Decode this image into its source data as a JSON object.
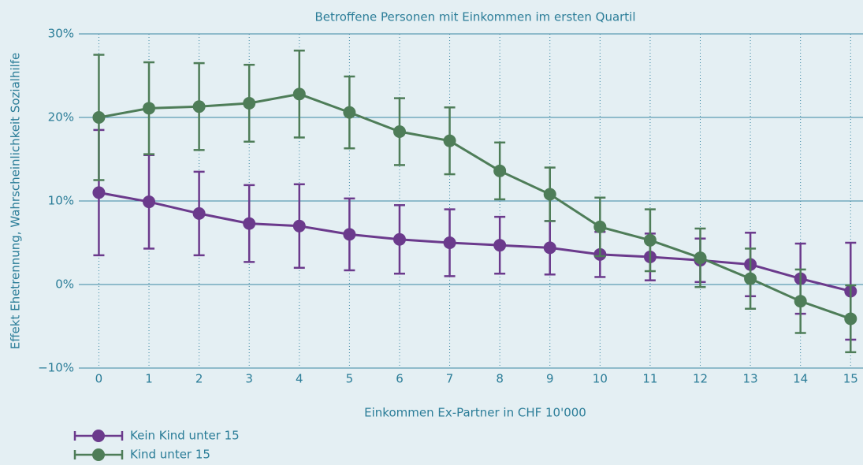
{
  "chart_data": {
    "type": "line",
    "title": "Betroffene Personen mit Einkommen im ersten Quartil",
    "xlabel": "Einkommen Ex-Partner in CHF 10'000",
    "ylabel": "Effekt Ehetrennung, Wahrscheinlichkeit Sozialhilfe",
    "x": [
      0,
      1,
      2,
      3,
      4,
      5,
      6,
      7,
      8,
      9,
      10,
      11,
      12,
      13,
      14,
      15
    ],
    "series": [
      {
        "name": "Kein Kind unter 15",
        "color": "#6b3a8c",
        "values": [
          11.0,
          9.9,
          8.5,
          7.3,
          7.0,
          6.0,
          5.4,
          5.0,
          4.7,
          4.4,
          3.6,
          3.3,
          2.9,
          2.4,
          0.7,
          -0.8
        ],
        "errors": [
          7.5,
          5.6,
          5.0,
          4.6,
          5.0,
          4.3,
          4.1,
          4.0,
          3.4,
          3.2,
          2.7,
          2.8,
          2.6,
          3.8,
          4.2,
          5.8
        ]
      },
      {
        "name": "Kind unter 15",
        "color": "#4e7d58",
        "values": [
          20.0,
          21.1,
          21.3,
          21.7,
          22.8,
          20.6,
          18.3,
          17.2,
          13.6,
          10.8,
          6.9,
          5.3,
          3.2,
          0.7,
          -2.0,
          -4.1
        ],
        "errors": [
          7.5,
          5.5,
          5.2,
          4.6,
          5.2,
          4.3,
          4.0,
          4.0,
          3.4,
          3.2,
          3.5,
          3.7,
          3.5,
          3.6,
          3.8,
          4.0
        ]
      }
    ],
    "xlim": [
      -0.4,
      15.2
    ],
    "xticks": [
      0,
      1,
      2,
      3,
      4,
      5,
      6,
      7,
      8,
      9,
      10,
      11,
      12,
      13,
      14,
      15
    ],
    "ylim": [
      -10,
      30
    ],
    "yticks": [
      {
        "value": -10,
        "label": "−10%"
      },
      {
        "value": 0,
        "label": "0%"
      },
      {
        "value": 10,
        "label": "10%"
      },
      {
        "value": 20,
        "label": "20%"
      },
      {
        "value": 30,
        "label": "30%"
      }
    ],
    "grid": true,
    "legend": "bottom-left"
  }
}
